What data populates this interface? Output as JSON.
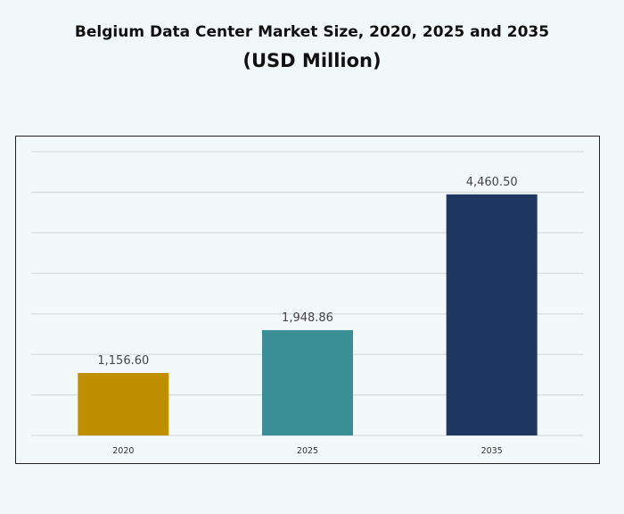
{
  "chart_data": {
    "type": "bar",
    "title": "Belgium Data Center Market Size, 2020, 2025 and 2035",
    "subtitle": "(USD Million)",
    "categories": [
      "2020",
      "2025",
      "2035"
    ],
    "values": [
      1156.6,
      1948.86,
      4460.5
    ],
    "value_labels": [
      "1,156.60",
      "1,948.86",
      "4,460.50"
    ],
    "colors": [
      "#c08f00",
      "#3a8e96",
      "#1f3862"
    ],
    "ylim": [
      0,
      5250
    ],
    "ytick_step": 750,
    "grid": true,
    "xlabel": "",
    "ylabel": ""
  }
}
